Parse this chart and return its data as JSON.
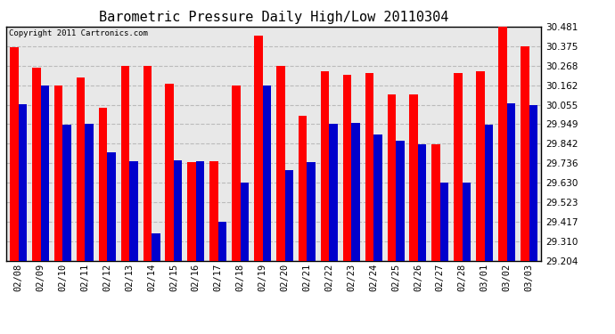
{
  "title": "Barometric Pressure Daily High/Low 20110304",
  "copyright": "Copyright 2011 Cartronics.com",
  "dates": [
    "02/08",
    "02/09",
    "02/10",
    "02/11",
    "02/12",
    "02/13",
    "02/14",
    "02/15",
    "02/16",
    "02/17",
    "02/18",
    "02/19",
    "02/20",
    "02/21",
    "02/22",
    "02/23",
    "02/24",
    "02/25",
    "02/26",
    "02/27",
    "02/28",
    "03/01",
    "03/02",
    "03/03"
  ],
  "highs": [
    30.37,
    30.258,
    30.162,
    30.205,
    30.04,
    30.268,
    30.268,
    30.17,
    29.74,
    29.745,
    30.162,
    30.43,
    30.268,
    29.995,
    30.24,
    30.22,
    30.23,
    30.11,
    30.113,
    29.84,
    30.23,
    30.24,
    30.481,
    30.375
  ],
  "lows": [
    30.06,
    30.162,
    29.946,
    29.95,
    29.795,
    29.745,
    29.35,
    29.75,
    29.745,
    29.417,
    29.628,
    30.162,
    29.699,
    29.74,
    29.95,
    29.955,
    29.89,
    29.86,
    29.84,
    29.63,
    29.63,
    29.946,
    30.065,
    30.055
  ],
  "ymin": 29.204,
  "ymax": 30.481,
  "yticks": [
    29.204,
    29.31,
    29.417,
    29.523,
    29.63,
    29.736,
    29.842,
    29.949,
    30.055,
    30.162,
    30.268,
    30.375,
    30.481
  ],
  "bar_width": 0.38,
  "high_color": "#ff0000",
  "low_color": "#0000cc",
  "bg_color": "#ffffff",
  "plot_bg_color": "#e8e8e8",
  "grid_color": "#bbbbbb",
  "title_fontsize": 11,
  "tick_fontsize": 7.5,
  "copyright_fontsize": 6.5
}
